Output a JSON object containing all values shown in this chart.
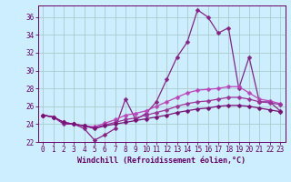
{
  "xlabel": "Windchill (Refroidissement éolien,°C)",
  "x": [
    0,
    1,
    2,
    3,
    4,
    5,
    6,
    7,
    8,
    9,
    10,
    11,
    12,
    13,
    14,
    15,
    16,
    17,
    18,
    19,
    20,
    21,
    22,
    23
  ],
  "lines": [
    [
      25.0,
      24.8,
      24.0,
      24.0,
      23.5,
      22.2,
      22.8,
      23.5,
      26.8,
      24.5,
      25.2,
      26.5,
      29.0,
      31.5,
      33.2,
      36.8,
      36.0,
      34.2,
      34.8,
      28.0,
      31.5,
      26.5,
      26.5,
      25.5
    ],
    [
      25.0,
      24.8,
      24.2,
      24.0,
      23.8,
      23.7,
      24.1,
      24.5,
      25.0,
      25.2,
      25.5,
      26.0,
      26.5,
      27.0,
      27.5,
      27.8,
      27.9,
      28.0,
      28.2,
      28.2,
      27.5,
      26.8,
      26.6,
      26.3
    ],
    [
      25.0,
      24.8,
      24.2,
      24.0,
      23.8,
      23.6,
      23.9,
      24.2,
      24.5,
      24.7,
      25.0,
      25.3,
      25.6,
      26.0,
      26.3,
      26.5,
      26.6,
      26.8,
      27.0,
      27.0,
      26.8,
      26.5,
      26.4,
      26.2
    ],
    [
      25.0,
      24.8,
      24.2,
      24.0,
      23.8,
      23.5,
      23.8,
      24.0,
      24.2,
      24.4,
      24.6,
      24.8,
      25.0,
      25.3,
      25.5,
      25.7,
      25.8,
      26.0,
      26.1,
      26.1,
      26.0,
      25.8,
      25.6,
      25.4
    ]
  ],
  "line_colors": [
    "#882288",
    "#bb44bb",
    "#993399",
    "#771177"
  ],
  "bg_color": "#cceeff",
  "grid_color": "#aacccc",
  "text_color": "#660066",
  "spine_color": "#660066",
  "ylim": [
    22,
    37
  ],
  "yticks": [
    22,
    24,
    26,
    28,
    30,
    32,
    34,
    36
  ],
  "xlim_min": -0.5,
  "xlim_max": 23.5,
  "markersize": 2.5,
  "linewidth": 0.9,
  "tick_fontsize": 5.5,
  "xlabel_fontsize": 6.0
}
